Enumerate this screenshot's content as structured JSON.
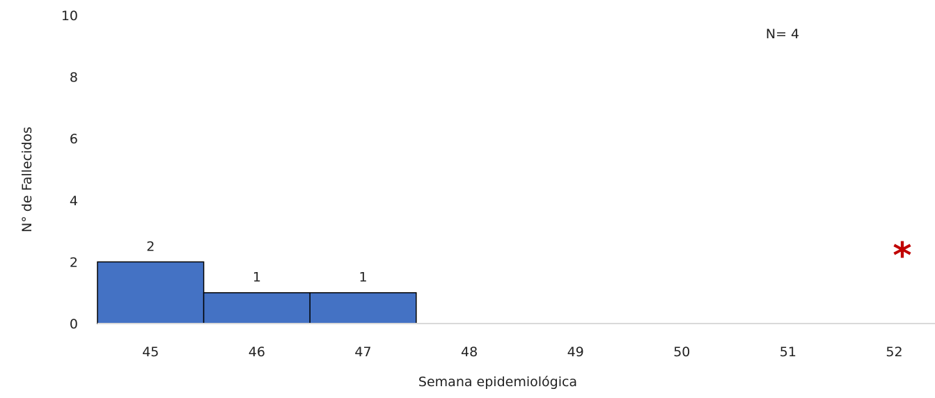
{
  "chart_data": {
    "type": "bar",
    "categories": [
      "45",
      "46",
      "47",
      "48",
      "49",
      "50",
      "51",
      "52"
    ],
    "values": [
      2,
      1,
      1,
      0,
      0,
      0,
      0,
      0
    ],
    "data_labels": [
      "2",
      "1",
      "1",
      "",
      "",
      "",
      "",
      ""
    ],
    "xlabel": "Semana epidemiológica",
    "ylabel": "N° de Fallecidos",
    "ylim": [
      0,
      10
    ],
    "yticks": [
      "0",
      "2",
      "4",
      "6",
      "8",
      "10"
    ],
    "grid": false,
    "legend": "none",
    "annotation": "N= 4",
    "marker": "*",
    "colors": {
      "bar_fill": "#4472C4",
      "bar_stroke": "#000000",
      "axis": "#D9D9D9",
      "marker": "#C00000"
    }
  }
}
